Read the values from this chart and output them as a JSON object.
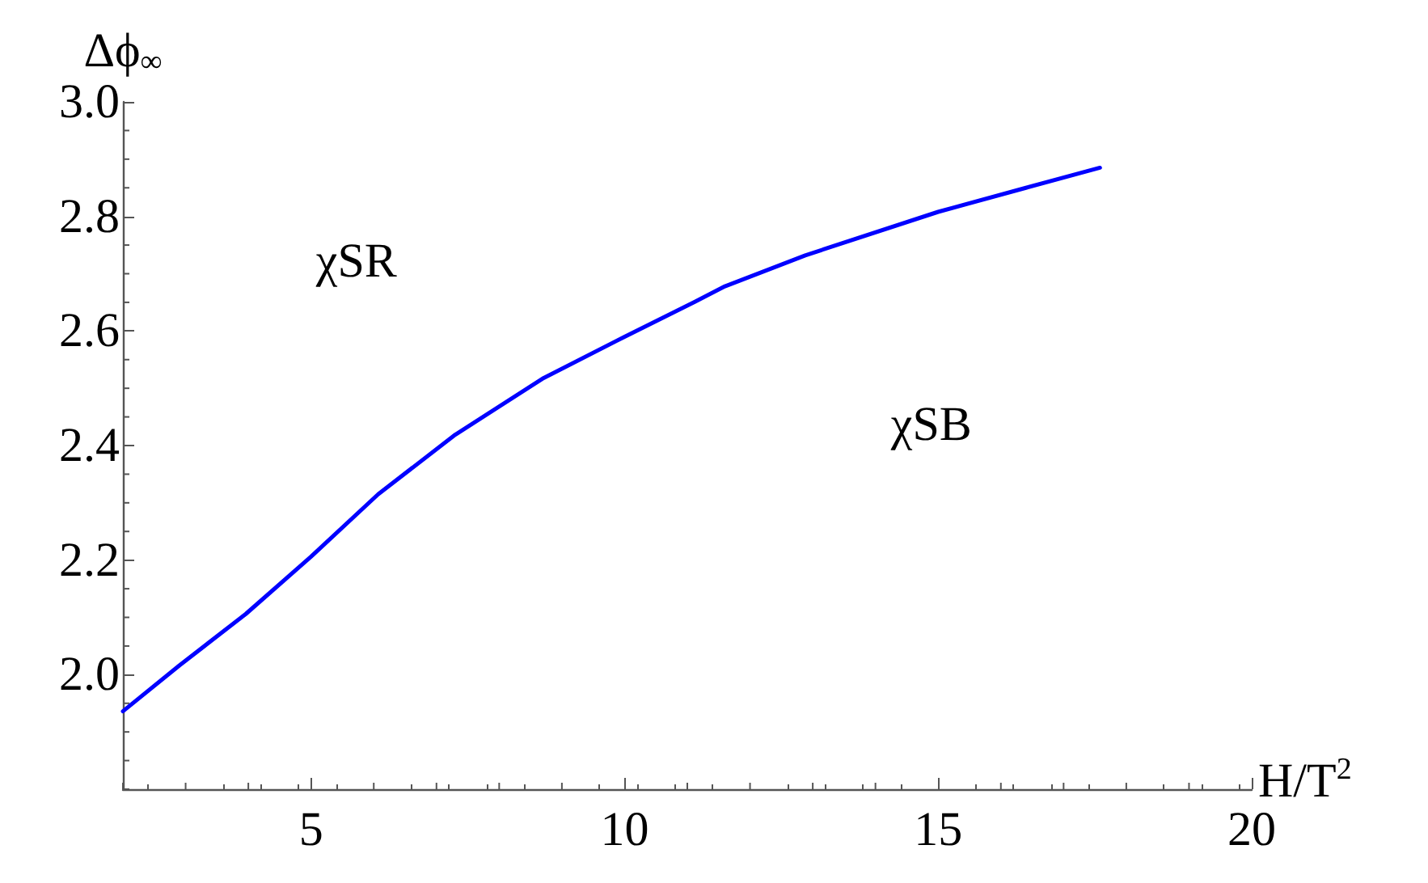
{
  "chart_data": {
    "type": "line",
    "xlabel": "H/T$^{2}$",
    "ylabel": "Δϕ$_{∞}$",
    "x": [
      2,
      2.9,
      3.96,
      5,
      6.07,
      7.3,
      8.71,
      10,
      11.12,
      11.6,
      12.88,
      15,
      16.4,
      17.58
    ],
    "series": [
      {
        "color": "#0000ff",
        "values": [
          1.936,
          2.016,
          2.106,
          2.206,
          2.315,
          2.419,
          2.518,
          2.59,
          2.651,
          2.678,
          2.732,
          2.808,
          2.85,
          2.885
        ]
      }
    ],
    "xlim": [
      2,
      20
    ],
    "xticks": [
      5,
      10,
      15,
      20
    ],
    "ylim": [
      1.8,
      3.0
    ],
    "yticks": [
      {
        "value": 2,
        "label": "2.0"
      },
      2.2,
      2.4,
      2.6,
      2.8,
      {
        "value": 3,
        "label": "3.0"
      }
    ],
    "annotations": [
      "χSR",
      "χSB"
    ],
    "grid": false,
    "marker": "none",
    "line_style": "solid"
  }
}
